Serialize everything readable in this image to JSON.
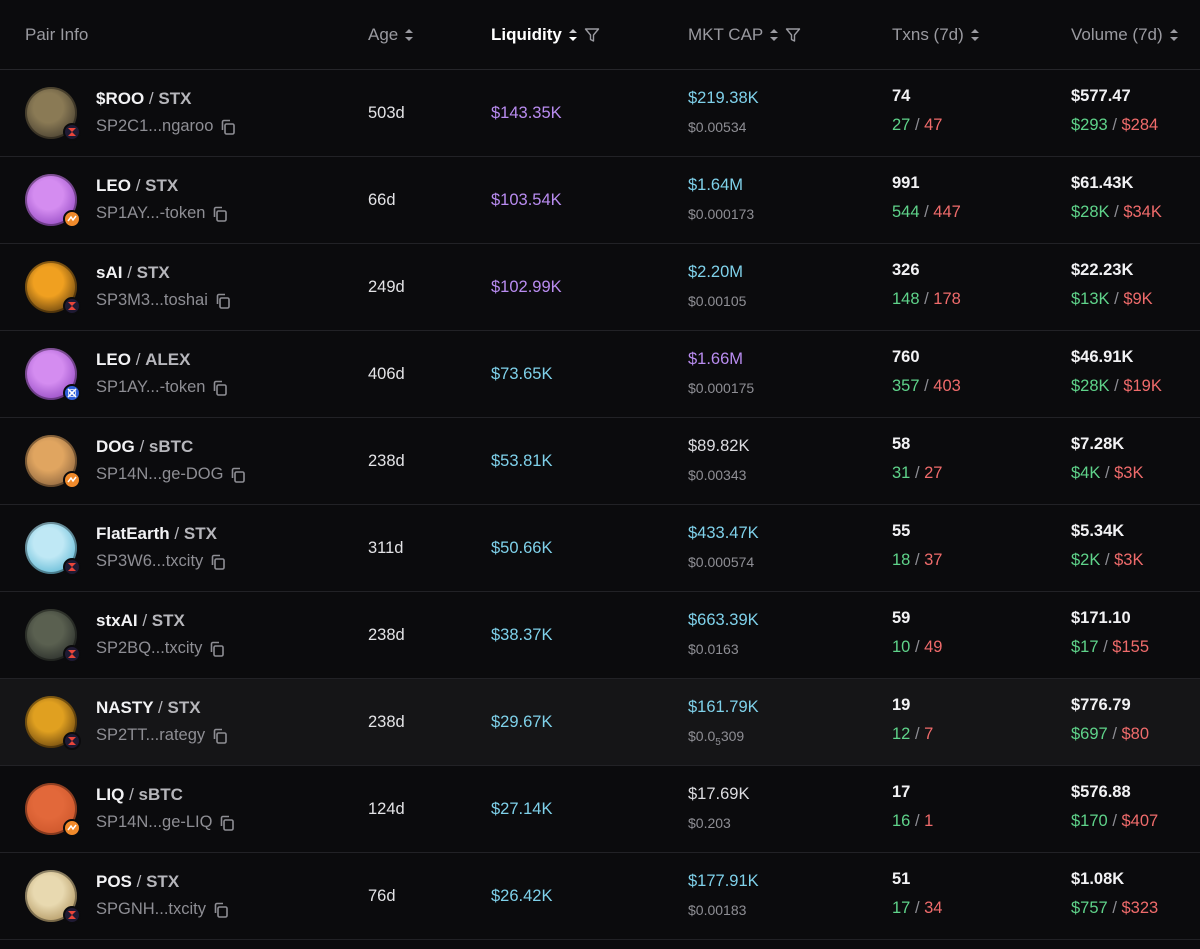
{
  "header": {
    "pair_info": "Pair Info",
    "age": "Age",
    "liquidity": "Liquidity",
    "mkt_cap": "MKT CAP",
    "txns": "Txns (7d)",
    "volume": "Volume (7d)"
  },
  "rows": [
    {
      "base": "$ROO",
      "quote": "STX",
      "address": "SP2C1...ngaroo",
      "age": "503d",
      "liquidity": "$143.35K",
      "liq_color": "purple",
      "mcap": "$219.38K",
      "mcap_color": "teal",
      "price": "$0.00534",
      "txns": "74",
      "buys": "27",
      "sells": "47",
      "volume": "$577.47",
      "buy_vol": "$293",
      "sell_vol": "$284",
      "badge": "velar",
      "avatar_colors": [
        "#8a7a55",
        "#2b2620"
      ]
    },
    {
      "base": "LEO",
      "quote": "STX",
      "address": "SP1AY...-token",
      "age": "66d",
      "liquidity": "$103.54K",
      "liq_color": "purple",
      "mcap": "$1.64M",
      "mcap_color": "teal",
      "price": "$0.000173",
      "txns": "991",
      "buys": "544",
      "sells": "447",
      "volume": "$61.43K",
      "buy_vol": "$28K",
      "sell_vol": "$34K",
      "badge": "bitflow",
      "avatar_colors": [
        "#d48cf0",
        "#7a2fb0"
      ]
    },
    {
      "base": "sAI",
      "quote": "STX",
      "address": "SP3M3...toshai",
      "age": "249d",
      "liquidity": "$102.99K",
      "liq_color": "purple",
      "mcap": "$2.20M",
      "mcap_color": "teal",
      "price": "$0.00105",
      "txns": "326",
      "buys": "148",
      "sells": "178",
      "volume": "$22.23K",
      "buy_vol": "$13K",
      "sell_vol": "$9K",
      "badge": "velar",
      "avatar_colors": [
        "#f0a020",
        "#2a1a08"
      ]
    },
    {
      "base": "LEO",
      "quote": "ALEX",
      "address": "SP1AY...-token",
      "age": "406d",
      "liquidity": "$73.65K",
      "liq_color": "teal",
      "mcap": "$1.66M",
      "mcap_color": "purple",
      "price": "$0.000175",
      "txns": "760",
      "buys": "357",
      "sells": "403",
      "volume": "$46.91K",
      "buy_vol": "$28K",
      "sell_vol": "$19K",
      "badge": "alex",
      "avatar_colors": [
        "#d48cf0",
        "#7a2fb0"
      ]
    },
    {
      "base": "DOG",
      "quote": "sBTC",
      "address": "SP14N...ge-DOG",
      "age": "238d",
      "liquidity": "$53.81K",
      "liq_color": "teal",
      "mcap": "$89.82K",
      "mcap_color": "white",
      "price": "$0.00343",
      "txns": "58",
      "buys": "31",
      "sells": "27",
      "volume": "$7.28K",
      "buy_vol": "$4K",
      "sell_vol": "$3K",
      "badge": "bitflow",
      "avatar_colors": [
        "#e0a560",
        "#6a4a30"
      ]
    },
    {
      "base": "FlatEarth",
      "quote": "STX",
      "address": "SP3W6...txcity",
      "age": "311d",
      "liquidity": "$50.66K",
      "liq_color": "teal",
      "mcap": "$433.47K",
      "mcap_color": "teal",
      "price": "$0.000574",
      "txns": "55",
      "buys": "18",
      "sells": "37",
      "volume": "$5.34K",
      "buy_vol": "$2K",
      "sell_vol": "$3K",
      "badge": "velar",
      "avatar_colors": [
        "#bfe8f5",
        "#3aa6c8"
      ]
    },
    {
      "base": "stxAI",
      "quote": "STX",
      "address": "SP2BQ...txcity",
      "age": "238d",
      "liquidity": "$38.37K",
      "liq_color": "teal",
      "mcap": "$663.39K",
      "mcap_color": "teal",
      "price": "$0.0163",
      "txns": "59",
      "buys": "10",
      "sells": "49",
      "volume": "$171.10",
      "buy_vol": "$17",
      "sell_vol": "$155",
      "badge": "velar",
      "avatar_colors": [
        "#5a6050",
        "#15181a"
      ]
    },
    {
      "base": "NASTY",
      "quote": "STX",
      "address": "SP2TT...rategy",
      "age": "238d",
      "liquidity": "$29.67K",
      "liq_color": "teal",
      "mcap": "$161.79K",
      "mcap_color": "teal",
      "price": "$0.0",
      "price_sub": "5",
      "price_tail": "309",
      "txns": "19",
      "buys": "12",
      "sells": "7",
      "volume": "$776.79",
      "buy_vol": "$697",
      "sell_vol": "$80",
      "badge": "velar",
      "avatar_colors": [
        "#e0a020",
        "#3a2008"
      ]
    },
    {
      "base": "LIQ",
      "quote": "sBTC",
      "address": "SP14N...ge-LIQ",
      "age": "124d",
      "liquidity": "$27.14K",
      "liq_color": "teal",
      "mcap": "$17.69K",
      "mcap_color": "white",
      "price": "$0.203",
      "txns": "17",
      "buys": "16",
      "sells": "1",
      "volume": "$576.88",
      "buy_vol": "$170",
      "sell_vol": "$407",
      "badge": "bitflow",
      "avatar_colors": [
        "#e2683a",
        "#c24e24"
      ]
    },
    {
      "base": "POS",
      "quote": "STX",
      "address": "SPGNH...txcity",
      "age": "76d",
      "liquidity": "$26.42K",
      "liq_color": "teal",
      "mcap": "$177.91K",
      "mcap_color": "teal",
      "price": "$0.00183",
      "txns": "51",
      "buys": "17",
      "sells": "34",
      "volume": "$1.08K",
      "buy_vol": "$757",
      "sell_vol": "$323",
      "badge": "velar",
      "avatar_colors": [
        "#e8d9b0",
        "#9a7a40"
      ]
    }
  ],
  "icons": {
    "sort": "sort-arrows-icon",
    "filter": "filter-funnel-icon",
    "copy": "copy-icon"
  }
}
